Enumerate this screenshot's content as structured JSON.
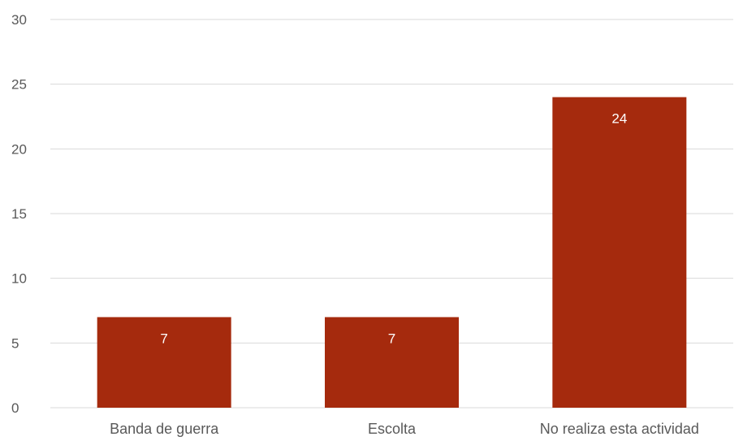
{
  "chart_data": {
    "type": "bar",
    "title": "",
    "xlabel": "",
    "ylabel": "",
    "categories": [
      "Banda de guerra",
      "Escolta",
      "No realiza esta actividad"
    ],
    "values": [
      7,
      7,
      24
    ],
    "data_labels": [
      "7",
      "7",
      "24"
    ],
    "ylim": [
      0,
      30
    ],
    "yticks": [
      0,
      5,
      10,
      15,
      20,
      25,
      30
    ],
    "ytick_labels": [
      "0",
      "5",
      "10",
      "15",
      "20",
      "25",
      "30"
    ],
    "grid": true,
    "legend": "none",
    "colors": {
      "bar": "#A52A0D",
      "grid": "#D9D9D9",
      "tick_text": "#595959",
      "data_label_text": "#FFFFFF"
    }
  }
}
